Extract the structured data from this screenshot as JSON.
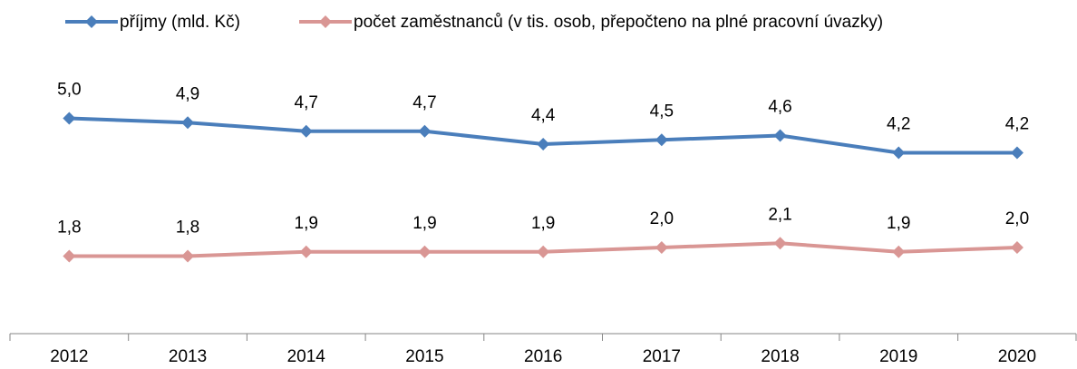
{
  "chart_data": {
    "type": "line",
    "categories": [
      "2012",
      "2013",
      "2014",
      "2015",
      "2016",
      "2017",
      "2018",
      "2019",
      "2020"
    ],
    "series": [
      {
        "name": "příjmy (mld. Kč)",
        "color": "#4a7ebb",
        "values": [
          5.0,
          4.9,
          4.7,
          4.7,
          4.4,
          4.5,
          4.6,
          4.2,
          4.2
        ],
        "value_labels": [
          "5,0",
          "4,9",
          "4,7",
          "4,7",
          "4,4",
          "4,5",
          "4,6",
          "4,2",
          "4,2"
        ]
      },
      {
        "name": "počet zaměstnanců (v tis. osob, přepočteno na plné pracovní úvazky)",
        "color": "#d99694",
        "values": [
          1.8,
          1.8,
          1.9,
          1.9,
          1.9,
          2.0,
          2.1,
          1.9,
          2.0
        ],
        "value_labels": [
          "1,8",
          "1,8",
          "1,9",
          "1,9",
          "1,9",
          "2,0",
          "2,1",
          "1,9",
          "2,0"
        ]
      }
    ],
    "ylim": [
      0,
      6
    ],
    "legend": "top"
  }
}
